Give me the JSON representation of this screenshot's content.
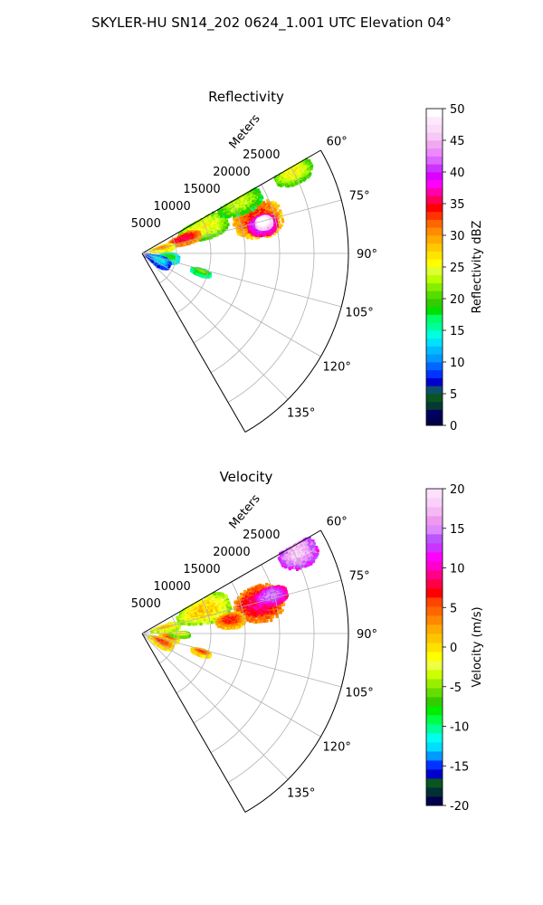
{
  "figure": {
    "title": "SKYLER-HU  SN14_202  0624_1.001 UTC Elevation 04°"
  },
  "chart_data": [
    {
      "type": "polar-sector",
      "title": "Reflectivity",
      "radial_label": "Meters",
      "radial_ticks": [
        5000,
        10000,
        15000,
        20000,
        25000
      ],
      "theta_ticks": [
        "60°",
        "75°",
        "90°",
        "105°",
        "120°",
        "135°"
      ],
      "theta_range_deg": [
        60,
        150
      ],
      "r_range": [
        0,
        30000
      ],
      "grid": true,
      "colorbar": {
        "label": "Reflectivity dBZ",
        "min": 0,
        "max": 50,
        "ticks": [
          0,
          5,
          10,
          15,
          20,
          25,
          30,
          35,
          40,
          45,
          50
        ],
        "colors": [
          "#00004c",
          "#00005f",
          "#053a33",
          "#0a5520",
          "#0d4f6b",
          "#0000cc",
          "#0033ff",
          "#0066ff",
          "#0099ff",
          "#00bbff",
          "#00e0ff",
          "#00ffdd",
          "#00ff99",
          "#00ff66",
          "#00e000",
          "#33cc00",
          "#55dd00",
          "#88ee00",
          "#bbff00",
          "#ddff33",
          "#ffff00",
          "#ffe400",
          "#ffc800",
          "#ffaa00",
          "#ff8c00",
          "#ff6600",
          "#ff3300",
          "#ff0000",
          "#ff0055",
          "#ff00aa",
          "#ff00ff",
          "#dd00ff",
          "#cc33ff",
          "#dd66ff",
          "#ee88ff",
          "#f0a8f0",
          "#f6c8f6",
          "#fadcfa",
          "#fde8fd",
          "#ffffff"
        ]
      },
      "echo_regions": [
        {
          "az": 74,
          "r": 17500,
          "daz": 9,
          "dr": 3800,
          "value": 30
        },
        {
          "az": 77,
          "r": 18000,
          "daz": 5,
          "dr": 2200,
          "value": 38
        },
        {
          "az": 76,
          "r": 18300,
          "daz": 3,
          "dr": 1200,
          "value": 48
        },
        {
          "az": 68,
          "r": 9500,
          "daz": 10,
          "dr": 4000,
          "value": 22
        },
        {
          "az": 72,
          "r": 6500,
          "daz": 7,
          "dr": 2500,
          "value": 32
        },
        {
          "az": 78,
          "r": 3000,
          "daz": 8,
          "dr": 1800,
          "value": 27
        },
        {
          "az": 62,
          "r": 25000,
          "daz": 4,
          "dr": 3000,
          "value": 22
        },
        {
          "az": 100,
          "r": 4000,
          "daz": 10,
          "dr": 1500,
          "value": 15
        },
        {
          "az": 115,
          "r": 2500,
          "daz": 15,
          "dr": 2000,
          "value": 10
        },
        {
          "az": 108,
          "r": 9000,
          "daz": 3,
          "dr": 1500,
          "value": 18
        },
        {
          "az": 63,
          "r": 16000,
          "daz": 6,
          "dr": 3500,
          "value": 20
        }
      ]
    },
    {
      "type": "polar-sector",
      "title": "Velocity",
      "radial_label": "Meters",
      "radial_ticks": [
        5000,
        10000,
        15000,
        20000,
        25000
      ],
      "theta_ticks": [
        "60°",
        "75°",
        "90°",
        "105°",
        "120°",
        "135°"
      ],
      "theta_range_deg": [
        60,
        150
      ],
      "r_range": [
        0,
        30000
      ],
      "grid": true,
      "colorbar": {
        "label": "Velocity (m/s)",
        "min": -20,
        "max": 20,
        "ticks": [
          -20,
          -15,
          -10,
          -5,
          0,
          5,
          10,
          15,
          20
        ],
        "colors": [
          "#00004c",
          "#003033",
          "#0a5520",
          "#0000cc",
          "#0033ff",
          "#0099ff",
          "#00ddff",
          "#00ffee",
          "#00ff99",
          "#00ff44",
          "#00ee00",
          "#33cc00",
          "#66dd00",
          "#99ee00",
          "#ccff00",
          "#eeff44",
          "#ffff00",
          "#ffe000",
          "#ffc400",
          "#ffaa00",
          "#ff8800",
          "#ff6600",
          "#ff4400",
          "#ff0000",
          "#ff0044",
          "#ff0088",
          "#ff00cc",
          "#ff00ff",
          "#cc33ff",
          "#bb55ff",
          "#dd88ff",
          "#ee99ee",
          "#f4b8f4",
          "#f8d0f8",
          "#fce0fc"
        ]
      },
      "echo_regions": [
        {
          "az": 70,
          "r": 9500,
          "daz": 12,
          "dr": 4200,
          "value": -3
        },
        {
          "az": 78,
          "r": 3500,
          "daz": 8,
          "dr": 2200,
          "value": -2
        },
        {
          "az": 76,
          "r": 17500,
          "daz": 9,
          "dr": 3800,
          "value": 5
        },
        {
          "az": 74,
          "r": 19500,
          "daz": 4,
          "dr": 2500,
          "value": 11
        },
        {
          "az": 82,
          "r": 13000,
          "daz": 5,
          "dr": 2200,
          "value": 3
        },
        {
          "az": 63,
          "r": 25500,
          "daz": 5,
          "dr": 3000,
          "value": 14
        },
        {
          "az": 100,
          "r": 4000,
          "daz": 10,
          "dr": 1500,
          "value": 1
        },
        {
          "az": 92,
          "r": 5500,
          "daz": 4,
          "dr": 1500,
          "value": -4
        },
        {
          "az": 108,
          "r": 9000,
          "daz": 3,
          "dr": 1500,
          "value": 2
        },
        {
          "az": 115,
          "r": 3000,
          "daz": 12,
          "dr": 2000,
          "value": 2
        }
      ]
    }
  ]
}
